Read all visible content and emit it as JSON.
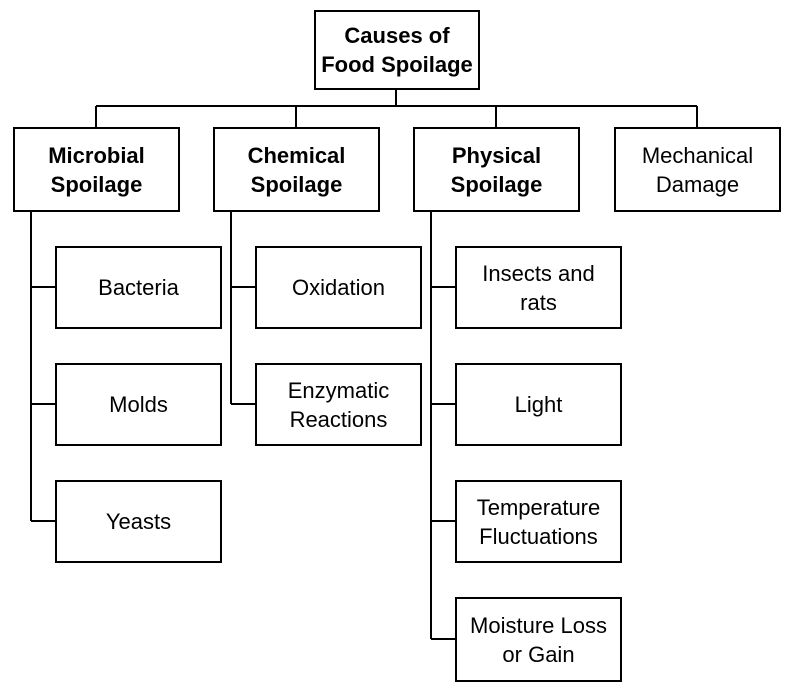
{
  "root": {
    "label": "Causes of\nFood Spoilage"
  },
  "categories": [
    {
      "label": "Microbial\nSpoilage",
      "items": [
        "Bacteria",
        "Molds",
        "Yeasts"
      ]
    },
    {
      "label": "Chemical\nSpoilage",
      "items": [
        "Oxidation",
        "Enzymatic\nReactions"
      ]
    },
    {
      "label": "Physical\nSpoilage",
      "items": [
        "Insects and\nrats",
        "Light",
        "Temperature\nFluctuations",
        "Moisture Loss\nor Gain"
      ]
    },
    {
      "label": "Mechanical\nDamage",
      "items": []
    }
  ]
}
